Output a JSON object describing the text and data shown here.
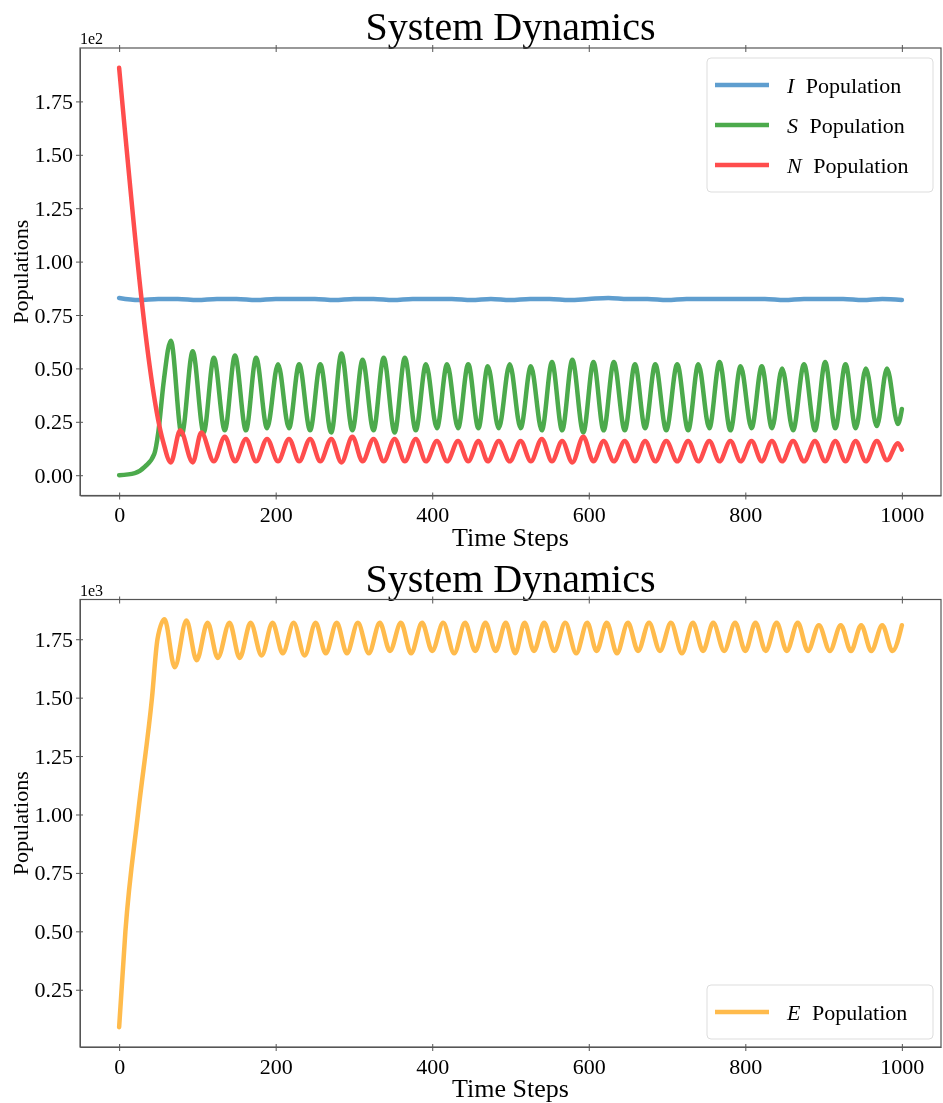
{
  "chart_data": [
    {
      "type": "line",
      "title": "System Dynamics",
      "xlabel": "Time Steps",
      "ylabel": "Populations",
      "annotations": [
        "1e2"
      ],
      "legend": "top right",
      "xlim": [
        -50,
        1050
      ],
      "xticks": [
        0,
        200,
        400,
        600,
        800,
        1000
      ],
      "ylim": [
        -0.095,
        2.0
      ],
      "yticks": [
        {
          "value": 0,
          "label": "0.00"
        },
        {
          "value": 0.25,
          "label": "0.25"
        },
        {
          "value": 0.5,
          "label": "0.50"
        },
        {
          "value": 0.75,
          "label": "0.75"
        },
        {
          "value": 1,
          "label": "1.00"
        },
        {
          "value": 1.25,
          "label": "1.25"
        },
        {
          "value": 1.5,
          "label": "1.50"
        },
        {
          "value": 1.75,
          "label": "1.75"
        }
      ],
      "series": [
        {
          "name": "I Population",
          "color": "#5f9ecf",
          "x": [
            0,
            25,
            50,
            75,
            100,
            125,
            150,
            175,
            200,
            225,
            250,
            275,
            300,
            325,
            350,
            375,
            400,
            425,
            450,
            475,
            500,
            525,
            550,
            575,
            600,
            625,
            650,
            675,
            700,
            725,
            750,
            775,
            800,
            825,
            850,
            875,
            900,
            925,
            950,
            975,
            1000
          ],
          "values": [
            0.83,
            0.82,
            0.825,
            0.825,
            0.82,
            0.825,
            0.825,
            0.82,
            0.825,
            0.825,
            0.825,
            0.82,
            0.825,
            0.825,
            0.82,
            0.825,
            0.825,
            0.825,
            0.82,
            0.825,
            0.82,
            0.825,
            0.825,
            0.82,
            0.825,
            0.83,
            0.825,
            0.825,
            0.82,
            0.825,
            0.825,
            0.825,
            0.825,
            0.825,
            0.82,
            0.825,
            0.825,
            0.825,
            0.82,
            0.825,
            0.82
          ]
        },
        {
          "name": "S Population",
          "color": "#4caa4c",
          "x": [
            0,
            20,
            33,
            45,
            50,
            57,
            66,
            80,
            94,
            108,
            121,
            135,
            148,
            162,
            175,
            189,
            203,
            217,
            230,
            244,
            257,
            271,
            284,
            298,
            311,
            325,
            338,
            352,
            365,
            379,
            392,
            406,
            419,
            433,
            446,
            459,
            471,
            485,
            499,
            513,
            526,
            540,
            553,
            566,
            579,
            593,
            606,
            619,
            632,
            646,
            659,
            672,
            685,
            699,
            713,
            727,
            740,
            754,
            767,
            781,
            794,
            808,
            821,
            834,
            847,
            861,
            875,
            889,
            902,
            915,
            928,
            941,
            954,
            968,
            981,
            995,
            1000
          ],
          "values": [
            0,
            0.01,
            0.04,
            0.1,
            0.2,
            0.44,
            0.63,
            0.19,
            0.58,
            0.2,
            0.55,
            0.21,
            0.56,
            0.21,
            0.55,
            0.22,
            0.52,
            0.22,
            0.52,
            0.21,
            0.52,
            0.2,
            0.57,
            0.21,
            0.54,
            0.21,
            0.55,
            0.2,
            0.55,
            0.21,
            0.52,
            0.22,
            0.52,
            0.22,
            0.52,
            0.22,
            0.51,
            0.22,
            0.52,
            0.22,
            0.51,
            0.21,
            0.53,
            0.21,
            0.54,
            0.2,
            0.53,
            0.21,
            0.53,
            0.21,
            0.52,
            0.22,
            0.52,
            0.21,
            0.52,
            0.21,
            0.52,
            0.22,
            0.53,
            0.21,
            0.51,
            0.22,
            0.51,
            0.22,
            0.5,
            0.21,
            0.52,
            0.21,
            0.53,
            0.22,
            0.52,
            0.22,
            0.5,
            0.23,
            0.5,
            0.24,
            0.31
          ]
        },
        {
          "name": "N Population",
          "color": "#ff4d4d",
          "x": [
            0,
            56,
            66,
            78,
            94,
            105,
            121,
            135,
            148,
            162,
            175,
            189,
            203,
            217,
            230,
            244,
            257,
            271,
            284,
            298,
            311,
            325,
            338,
            352,
            365,
            379,
            392,
            406,
            419,
            433,
            446,
            459,
            471,
            485,
            499,
            513,
            526,
            540,
            553,
            566,
            579,
            593,
            606,
            619,
            632,
            646,
            659,
            672,
            685,
            699,
            713,
            727,
            740,
            754,
            767,
            781,
            794,
            808,
            821,
            834,
            847,
            861,
            875,
            889,
            902,
            915,
            928,
            941,
            954,
            968,
            981,
            995,
            1000
          ],
          "values": [
            1.907,
            0.16,
            0.06,
            0.21,
            0.06,
            0.2,
            0.065,
            0.18,
            0.065,
            0.17,
            0.065,
            0.17,
            0.065,
            0.17,
            0.065,
            0.17,
            0.065,
            0.17,
            0.06,
            0.18,
            0.065,
            0.17,
            0.065,
            0.17,
            0.065,
            0.17,
            0.065,
            0.16,
            0.065,
            0.16,
            0.065,
            0.16,
            0.065,
            0.16,
            0.065,
            0.16,
            0.065,
            0.17,
            0.065,
            0.16,
            0.06,
            0.18,
            0.065,
            0.16,
            0.065,
            0.16,
            0.065,
            0.16,
            0.065,
            0.16,
            0.065,
            0.16,
            0.065,
            0.16,
            0.065,
            0.16,
            0.065,
            0.16,
            0.065,
            0.16,
            0.065,
            0.16,
            0.065,
            0.16,
            0.065,
            0.16,
            0.065,
            0.16,
            0.065,
            0.16,
            0.07,
            0.15,
            0.12
          ]
        }
      ]
    },
    {
      "type": "line",
      "title": "System Dynamics",
      "xlabel": "Time Steps",
      "ylabel": "Populations",
      "annotations": [
        "1e3"
      ],
      "legend": "bottom right",
      "xlim": [
        -50,
        1050
      ],
      "xticks": [
        0,
        200,
        400,
        600,
        800,
        1000
      ],
      "ylim": [
        0.005,
        1.92
      ],
      "yticks": [
        {
          "value": 0.25,
          "label": "0.25"
        },
        {
          "value": 0.5,
          "label": "0.50"
        },
        {
          "value": 0.75,
          "label": "0.75"
        },
        {
          "value": 1,
          "label": "1.00"
        },
        {
          "value": 1.25,
          "label": "1.25"
        },
        {
          "value": 1.5,
          "label": "1.50"
        },
        {
          "value": 1.75,
          "label": "1.75"
        }
      ],
      "series": [
        {
          "name": "E Population",
          "color": "#ffbb4c",
          "x": [
            0,
            8,
            24,
            42,
            49,
            58,
            71,
            86,
            99,
            113,
            126,
            141,
            154,
            168,
            182,
            196,
            209,
            223,
            237,
            251,
            264,
            278,
            291,
            305,
            319,
            333,
            346,
            360,
            373,
            387,
            400,
            414,
            428,
            442,
            455,
            468,
            481,
            494,
            506,
            518,
            530,
            543,
            556,
            570,
            584,
            598,
            610,
            623,
            636,
            650,
            663,
            677,
            691,
            705,
            719,
            733,
            746,
            759,
            773,
            787,
            800,
            813,
            826,
            840,
            853,
            867,
            880,
            894,
            908,
            922,
            935,
            948,
            961,
            975,
            988,
            1000
          ],
          "values": [
            0.09,
            0.5,
            1.0,
            1.5,
            1.75,
            1.835,
            1.63,
            1.83,
            1.66,
            1.82,
            1.67,
            1.82,
            1.67,
            1.82,
            1.68,
            1.82,
            1.69,
            1.82,
            1.68,
            1.82,
            1.69,
            1.82,
            1.69,
            1.82,
            1.69,
            1.82,
            1.7,
            1.82,
            1.69,
            1.82,
            1.7,
            1.82,
            1.69,
            1.82,
            1.7,
            1.82,
            1.7,
            1.82,
            1.69,
            1.82,
            1.7,
            1.82,
            1.7,
            1.82,
            1.69,
            1.82,
            1.7,
            1.82,
            1.69,
            1.82,
            1.7,
            1.82,
            1.7,
            1.82,
            1.69,
            1.82,
            1.7,
            1.82,
            1.7,
            1.82,
            1.7,
            1.82,
            1.7,
            1.82,
            1.7,
            1.82,
            1.7,
            1.81,
            1.7,
            1.81,
            1.7,
            1.81,
            1.7,
            1.81,
            1.7,
            1.81
          ]
        }
      ]
    }
  ]
}
